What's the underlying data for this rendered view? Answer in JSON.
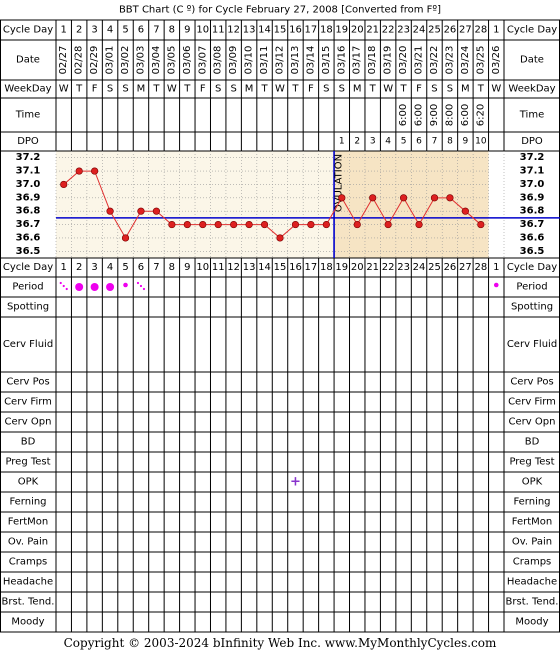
{
  "title": "BBT Chart (C º) for Cycle February 27, 2008  [Converted from Fº]",
  "footer": "Copyright © 2003-2024 bInfinity Web Inc.     www.MyMonthlyCycles.com",
  "row_labels": {
    "cycle_day": "Cycle Day",
    "date": "Date",
    "weekday": "WeekDay",
    "time": "Time",
    "dpo": "DPO",
    "period": "Period",
    "spotting": "Spotting",
    "cerv_fluid": "Cerv Fluid",
    "cerv_pos": "Cerv Pos",
    "cerv_firm": "Cerv Firm",
    "cerv_opn": "Cerv Opn",
    "bd": "BD",
    "preg_test": "Preg Test",
    "opk": "OPK",
    "ferning": "Ferning",
    "fertmon": "FertMon",
    "ov_pain": "Ov. Pain",
    "cramps": "Cramps",
    "headache": "Headache",
    "brst_tend": "Brst. Tend.",
    "moody": "Moody"
  },
  "cycle_days": [
    "1",
    "2",
    "3",
    "4",
    "5",
    "6",
    "7",
    "8",
    "9",
    "10",
    "11",
    "12",
    "13",
    "14",
    "15",
    "16",
    "17",
    "18",
    "19",
    "20",
    "21",
    "22",
    "23",
    "24",
    "25",
    "26",
    "27",
    "28",
    "1"
  ],
  "dates": [
    "02/27",
    "02/28",
    "02/29",
    "03/01",
    "03/02",
    "03/03",
    "03/04",
    "03/05",
    "03/06",
    "03/07",
    "03/08",
    "03/09",
    "03/10",
    "03/11",
    "03/12",
    "03/13",
    "03/14",
    "03/15",
    "03/16",
    "03/17",
    "03/18",
    "03/19",
    "03/20",
    "03/21",
    "03/22",
    "03/23",
    "03/24",
    "03/25",
    "03/26"
  ],
  "weekdays": [
    "W",
    "T",
    "F",
    "S",
    "S",
    "M",
    "T",
    "W",
    "T",
    "F",
    "S",
    "S",
    "M",
    "T",
    "W",
    "T",
    "F",
    "S",
    "S",
    "M",
    "T",
    "W",
    "T",
    "F",
    "S",
    "S",
    "M",
    "T",
    "W"
  ],
  "times": [
    "",
    "",
    "",
    "",
    "",
    "",
    "",
    "",
    "",
    "",
    "",
    "",
    "",
    "",
    "",
    "",
    "",
    "",
    "",
    "",
    "",
    "",
    "6:00",
    "6:00",
    "9:00",
    "8:00",
    "6:00",
    "6:20",
    ""
  ],
  "dpo": [
    "",
    "",
    "",
    "",
    "",
    "",
    "",
    "",
    "",
    "",
    "",
    "",
    "",
    "",
    "",
    "",
    "",
    "",
    "1",
    "2",
    "3",
    "4",
    "5",
    "6",
    "7",
    "8",
    "9",
    "10",
    ""
  ],
  "ovulation_label": "OVULATION",
  "opk_mark": "+",
  "colors": {
    "grid": "#000000",
    "follicular_fill": "#fbf6e8",
    "luteal_fill": "#f6e4c4",
    "coverline": "#0000cc",
    "temp_line": "#e03030",
    "temp_point": "#dd2020",
    "period_dot": "#ee00ee",
    "opk_mark": "#8833cc"
  },
  "period": [
    {
      "day_index": 0,
      "mark": "spotting"
    },
    {
      "day_index": 1,
      "mark": "medium"
    },
    {
      "day_index": 2,
      "mark": "medium"
    },
    {
      "day_index": 3,
      "mark": "medium"
    },
    {
      "day_index": 4,
      "mark": "light"
    },
    {
      "day_index": 5,
      "mark": "spotting"
    },
    {
      "day_index": 28,
      "mark": "light"
    }
  ],
  "opk_day_index": 15,
  "ovulation_day_index": 17,
  "chart_data": {
    "type": "line",
    "x": [
      "1",
      "2",
      "3",
      "4",
      "5",
      "6",
      "7",
      "8",
      "9",
      "10",
      "11",
      "12",
      "13",
      "14",
      "15",
      "16",
      "17",
      "18",
      "19",
      "20",
      "21",
      "22",
      "23",
      "24",
      "25",
      "26",
      "27",
      "28"
    ],
    "y_ticks": [
      "37.2",
      "37.1",
      "37.0",
      "36.9",
      "36.8",
      "36.7",
      "36.6",
      "36.5"
    ],
    "ylim": [
      36.5,
      37.2
    ],
    "coverline": 36.75,
    "series": [
      {
        "values": [
          37.0,
          37.1,
          37.1,
          36.8,
          36.6,
          36.8,
          36.8,
          36.7,
          36.7,
          36.7,
          36.7,
          36.7,
          36.7,
          36.7,
          36.6,
          36.7,
          36.7,
          36.7,
          36.9,
          36.7,
          36.9,
          36.7,
          36.9,
          36.7,
          36.9,
          36.9,
          36.8,
          36.7
        ]
      }
    ]
  }
}
